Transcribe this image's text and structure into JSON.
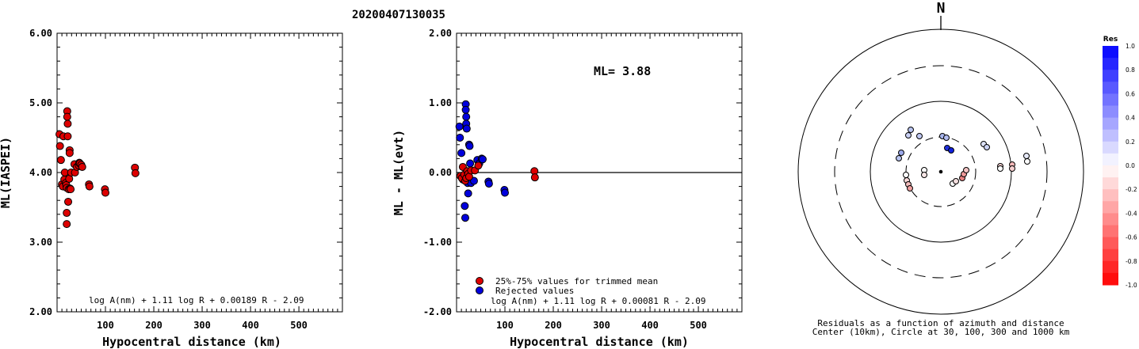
{
  "title": "20200407130035",
  "north_label": "N",
  "ml_text": "ML= 3.88",
  "formula_left": "log A(nm) + 1.11 log R + 0.00189 R - 2.09",
  "formula_right": "log A(nm) + 1.11 log R + 0.00081 R - 2.09",
  "legend": {
    "accepted": "25%-75% values for trimmed mean",
    "rejected": "Rejected values"
  },
  "polar_caption": {
    "line1": "Residuals as a function of azimuth and distance",
    "line2": "Center (10km), Circle at 30, 100, 300 and 1000 km"
  },
  "colorbar": {
    "title": "Res",
    "labels": [
      "1.0",
      "0.8",
      "0.6",
      "0.4",
      "0.2",
      "0.0",
      "-0.2",
      "-0.4",
      "-0.6",
      "-0.8",
      "-1.0"
    ]
  },
  "colors": {
    "accepted": "#dd0000",
    "rejected": "#0000dd",
    "axis": "#000000"
  },
  "chart_data": [
    {
      "type": "scatter",
      "name": "left",
      "xlabel": "Hypocentral distance (km)",
      "ylabel": "ML(IASPEI)",
      "xlim": [
        0,
        590
      ],
      "ylim": [
        2.0,
        6.0
      ],
      "xticks": [
        "100",
        "200",
        "300",
        "400",
        "500"
      ],
      "yticks": [
        "2.00",
        "3.00",
        "4.00",
        "5.00",
        "6.00"
      ],
      "points": [
        [
          5,
          4.55
        ],
        [
          6,
          4.38
        ],
        [
          8,
          4.18
        ],
        [
          10,
          3.83
        ],
        [
          12,
          3.8
        ],
        [
          13,
          4.52
        ],
        [
          15,
          3.9
        ],
        [
          16,
          4.0
        ],
        [
          18,
          3.85
        ],
        [
          19,
          3.82
        ],
        [
          20,
          3.78
        ],
        [
          20,
          3.42
        ],
        [
          20,
          3.26
        ],
        [
          21,
          4.88
        ],
        [
          21,
          4.8
        ],
        [
          22,
          4.7
        ],
        [
          22,
          4.52
        ],
        [
          23,
          3.58
        ],
        [
          24,
          3.76
        ],
        [
          25,
          3.91
        ],
        [
          26,
          4.32
        ],
        [
          26,
          4.28
        ],
        [
          27,
          3.77
        ],
        [
          28,
          3.76
        ],
        [
          29,
          4.0
        ],
        [
          36,
          4.12
        ],
        [
          37,
          4.0
        ],
        [
          41,
          4.08
        ],
        [
          45,
          4.1
        ],
        [
          46,
          4.14
        ],
        [
          47,
          4.13
        ],
        [
          50,
          4.11
        ],
        [
          52,
          4.08
        ],
        [
          66,
          3.83
        ],
        [
          67,
          3.8
        ],
        [
          99,
          3.76
        ],
        [
          100,
          3.71
        ],
        [
          161,
          4.07
        ],
        [
          162,
          3.99
        ]
      ]
    },
    {
      "type": "scatter",
      "name": "right",
      "xlabel": "Hypocentral distance (km)",
      "ylabel": "ML - ML(evt)",
      "xlim": [
        0,
        590
      ],
      "ylim": [
        -2.0,
        2.0
      ],
      "xticks": [
        "100",
        "200",
        "300",
        "400",
        "500"
      ],
      "yticks": [
        "-2.00",
        "-1.00",
        "0.00",
        "1.00",
        "2.00"
      ],
      "reference_line": 0.0,
      "rejected": [
        [
          6,
          0.66
        ],
        [
          7,
          0.5
        ],
        [
          10,
          0.28
        ],
        [
          12,
          -0.05
        ],
        [
          13,
          -0.1
        ],
        [
          17,
          -0.48
        ],
        [
          18,
          -0.65
        ],
        [
          19,
          0.98
        ],
        [
          19,
          0.9
        ],
        [
          20,
          0.8
        ],
        [
          20,
          0.7
        ],
        [
          21,
          0.63
        ],
        [
          23,
          -0.15
        ],
        [
          24,
          -0.3
        ],
        [
          26,
          0.4
        ],
        [
          27,
          0.38
        ],
        [
          28,
          0.13
        ],
        [
          30,
          -0.15
        ],
        [
          36,
          -0.12
        ],
        [
          43,
          0.18
        ],
        [
          47,
          0.13
        ],
        [
          52,
          0.2
        ],
        [
          54,
          0.19
        ],
        [
          66,
          -0.13
        ],
        [
          67,
          -0.16
        ],
        [
          99,
          -0.25
        ],
        [
          100,
          -0.29
        ]
      ],
      "accepted": [
        [
          8,
          -0.05
        ],
        [
          11,
          -0.08
        ],
        [
          13,
          0.08
        ],
        [
          16,
          -0.03
        ],
        [
          18,
          -0.12
        ],
        [
          20,
          -0.08
        ],
        [
          22,
          0.02
        ],
        [
          24,
          -0.02
        ],
        [
          26,
          -0.06
        ],
        [
          30,
          0.03
        ],
        [
          38,
          0.03
        ],
        [
          45,
          0.1
        ],
        [
          161,
          0.02
        ],
        [
          162,
          -0.07
        ]
      ]
    }
  ],
  "polar_points": [
    {
      "x": 1149,
      "y": 164,
      "c": "#b8c3ef"
    },
    {
      "x": 1146,
      "y": 171,
      "c": "#c8cff3"
    },
    {
      "x": 1137,
      "y": 193,
      "c": "#9ca9ea"
    },
    {
      "x": 1134,
      "y": 200,
      "c": "#b8c3ef"
    },
    {
      "x": 1160,
      "y": 172,
      "c": "#c0c8f2"
    },
    {
      "x": 1189,
      "y": 172,
      "c": "#a8b5ec"
    },
    {
      "x": 1194,
      "y": 174,
      "c": "#b4bef0"
    },
    {
      "x": 1195,
      "y": 187,
      "c": "#2030dd"
    },
    {
      "x": 1200,
      "y": 190,
      "c": "#1020dd"
    },
    {
      "x": 1241,
      "y": 182,
      "c": "#dde2f6"
    },
    {
      "x": 1245,
      "y": 186,
      "c": "#ccd3f4"
    },
    {
      "x": 1295,
      "y": 197,
      "c": "#e6e9f9"
    },
    {
      "x": 1296,
      "y": 204,
      "c": "#ffffff"
    },
    {
      "x": 1262,
      "y": 210,
      "c": "#f7d4d4"
    },
    {
      "x": 1262,
      "y": 213,
      "c": "#ffffff"
    },
    {
      "x": 1277,
      "y": 208,
      "c": "#f4b8b8"
    },
    {
      "x": 1277,
      "y": 213,
      "c": "#f7d0d0"
    },
    {
      "x": 1143,
      "y": 221,
      "c": "#ffffff"
    },
    {
      "x": 1144,
      "y": 228,
      "c": "#f7d8d8"
    },
    {
      "x": 1146,
      "y": 233,
      "c": "#f2bcbc"
    },
    {
      "x": 1148,
      "y": 238,
      "c": "#ef9e9e"
    },
    {
      "x": 1166,
      "y": 215,
      "c": "#ffffff"
    },
    {
      "x": 1166,
      "y": 221,
      "c": "#f6e6e6"
    },
    {
      "x": 1202,
      "y": 232,
      "c": "#ffffff"
    },
    {
      "x": 1206,
      "y": 229,
      "c": "#f4dede"
    },
    {
      "x": 1214,
      "y": 225,
      "c": "#e88080"
    },
    {
      "x": 1216,
      "y": 220,
      "c": "#ef9a9a"
    },
    {
      "x": 1219,
      "y": 215,
      "c": "#f4c4c4"
    }
  ]
}
